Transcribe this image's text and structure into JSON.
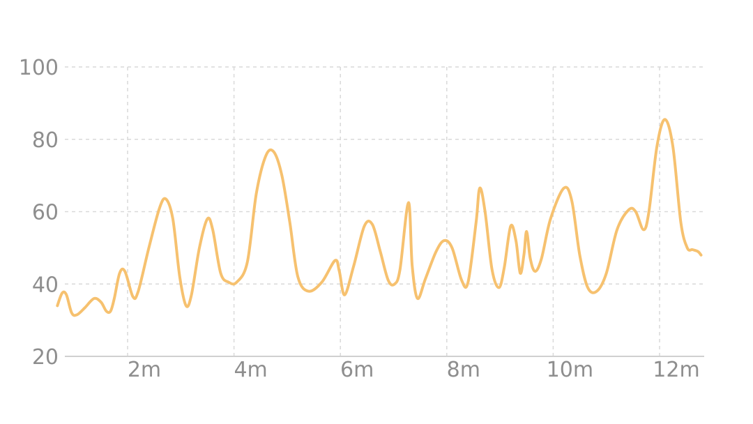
{
  "chart_data": {
    "type": "line",
    "title": "",
    "xlabel": "",
    "ylabel": "",
    "x_unit": "minutes",
    "xlim": [
      0.6,
      12.75
    ],
    "ylim": [
      20,
      100
    ],
    "y_ticks": [
      {
        "value": 20,
        "label": "20"
      },
      {
        "value": 40,
        "label": "40"
      },
      {
        "value": 60,
        "label": "60"
      },
      {
        "value": 80,
        "label": "80"
      },
      {
        "value": 100,
        "label": "100"
      }
    ],
    "x_ticks": [
      {
        "value": 2,
        "label": "2m"
      },
      {
        "value": 4,
        "label": "4m"
      },
      {
        "value": 6,
        "label": "6m"
      },
      {
        "value": 8,
        "label": "8m"
      },
      {
        "value": 10,
        "label": "10m"
      },
      {
        "value": 12,
        "label": "12m"
      }
    ],
    "grid": true,
    "legend": "none",
    "series": [
      {
        "color": "#f6c16f",
        "points": [
          [
            0.68,
            34
          ],
          [
            0.77,
            37.5
          ],
          [
            0.85,
            37
          ],
          [
            0.95,
            32
          ],
          [
            1.05,
            31.5
          ],
          [
            1.2,
            33.5
          ],
          [
            1.37,
            36
          ],
          [
            1.5,
            35
          ],
          [
            1.6,
            32.5
          ],
          [
            1.68,
            32.5
          ],
          [
            1.75,
            36
          ],
          [
            1.85,
            43
          ],
          [
            1.95,
            43.5
          ],
          [
            2.1,
            36.5
          ],
          [
            2.2,
            38
          ],
          [
            2.4,
            50
          ],
          [
            2.6,
            61
          ],
          [
            2.72,
            63.5
          ],
          [
            2.85,
            58
          ],
          [
            2.98,
            42
          ],
          [
            3.1,
            34
          ],
          [
            3.2,
            37
          ],
          [
            3.35,
            50
          ],
          [
            3.5,
            58
          ],
          [
            3.6,
            55
          ],
          [
            3.75,
            43
          ],
          [
            3.9,
            40.5
          ],
          [
            4.05,
            40.5
          ],
          [
            4.25,
            46
          ],
          [
            4.42,
            65
          ],
          [
            4.6,
            75.5
          ],
          [
            4.75,
            76.5
          ],
          [
            4.9,
            70
          ],
          [
            5.05,
            57
          ],
          [
            5.2,
            42
          ],
          [
            5.4,
            38
          ],
          [
            5.65,
            40.5
          ],
          [
            5.9,
            46.5
          ],
          [
            5.98,
            43.5
          ],
          [
            6.08,
            37
          ],
          [
            6.25,
            45
          ],
          [
            6.45,
            56
          ],
          [
            6.6,
            56.5
          ],
          [
            6.75,
            49
          ],
          [
            6.9,
            41
          ],
          [
            7.02,
            40
          ],
          [
            7.12,
            44
          ],
          [
            7.28,
            62.5
          ],
          [
            7.35,
            45
          ],
          [
            7.45,
            36
          ],
          [
            7.6,
            41.5
          ],
          [
            7.8,
            49
          ],
          [
            7.95,
            52
          ],
          [
            8.1,
            50
          ],
          [
            8.28,
            41
          ],
          [
            8.4,
            40.5
          ],
          [
            8.55,
            57
          ],
          [
            8.62,
            66.5
          ],
          [
            8.72,
            60
          ],
          [
            8.85,
            44
          ],
          [
            8.98,
            39
          ],
          [
            9.08,
            44.5
          ],
          [
            9.2,
            56
          ],
          [
            9.3,
            52
          ],
          [
            9.38,
            43
          ],
          [
            9.45,
            48
          ],
          [
            9.5,
            54.5
          ],
          [
            9.57,
            47
          ],
          [
            9.66,
            43.5
          ],
          [
            9.78,
            47
          ],
          [
            9.95,
            58
          ],
          [
            10.2,
            66.5
          ],
          [
            10.35,
            63
          ],
          [
            10.5,
            48
          ],
          [
            10.65,
            39
          ],
          [
            10.82,
            38
          ],
          [
            11.0,
            43
          ],
          [
            11.2,
            55
          ],
          [
            11.42,
            60.5
          ],
          [
            11.55,
            60
          ],
          [
            11.7,
            55
          ],
          [
            11.8,
            60
          ],
          [
            11.95,
            78
          ],
          [
            12.1,
            85.5
          ],
          [
            12.25,
            78
          ],
          [
            12.4,
            57
          ],
          [
            12.52,
            50
          ],
          [
            12.62,
            49.5
          ],
          [
            12.72,
            49
          ],
          [
            12.78,
            48
          ]
        ]
      }
    ]
  }
}
